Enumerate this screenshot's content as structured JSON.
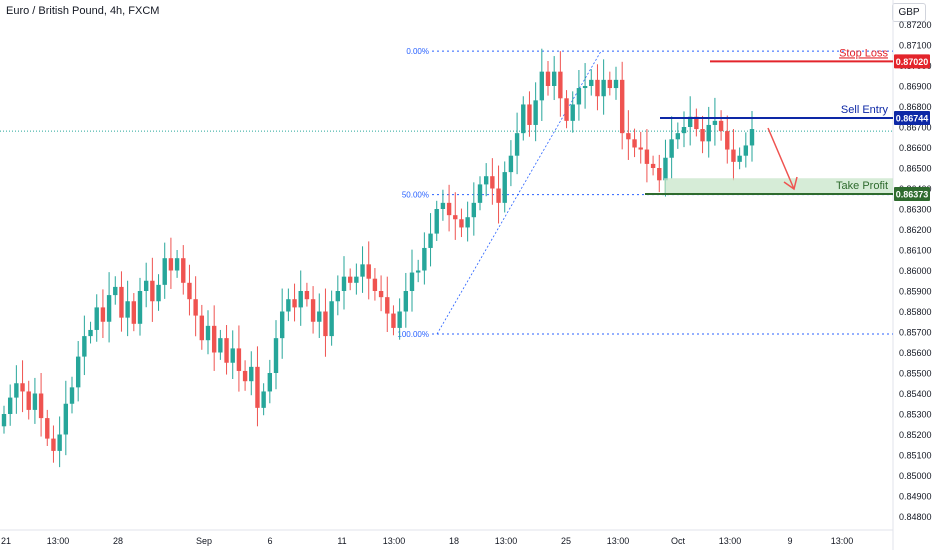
{
  "header": {
    "title": "Euro / British Pound, 4h, FXCM",
    "currency": "GBP"
  },
  "colors": {
    "up": "#26a69a",
    "down": "#ef5350",
    "stop_loss": "#e3242b",
    "sell_entry": "#0d28a6",
    "take_profit": "#2e6b2e",
    "take_profit_zone": "#c8e6c9",
    "fib": "#2962ff",
    "axis_text": "#131722"
  },
  "chart_data": {
    "type": "candlestick",
    "title": "Euro / British Pound, 4h, FXCM",
    "ylim": [
      0.8475,
      0.8725
    ],
    "y_ticks": [
      "0.87200",
      "0.87100",
      "0.87000",
      "0.86900",
      "0.86800",
      "0.86700",
      "0.86600",
      "0.86500",
      "0.86400",
      "0.86300",
      "0.86200",
      "0.86100",
      "0.86000",
      "0.85900",
      "0.85800",
      "0.85700",
      "0.85600",
      "0.85500",
      "0.85400",
      "0.85300",
      "0.85200",
      "0.85100",
      "0.85000",
      "0.84900",
      "0.84800"
    ],
    "x_ticks": [
      "21",
      "13:00",
      "28",
      "Sep",
      "6",
      "11",
      "13:00",
      "18",
      "13:00",
      "25",
      "13:00",
      "Oct",
      "13:00",
      "9",
      "13:00"
    ],
    "candles": {
      "close": [
        0.853,
        0.8538,
        0.8545,
        0.8541,
        0.8532,
        0.854,
        0.8528,
        0.8518,
        0.8512,
        0.852,
        0.8535,
        0.8543,
        0.8558,
        0.8568,
        0.8571,
        0.8582,
        0.8575,
        0.8588,
        0.8592,
        0.8577,
        0.8585,
        0.8574,
        0.859,
        0.8595,
        0.8585,
        0.8593,
        0.8606,
        0.86,
        0.8606,
        0.8594,
        0.8586,
        0.8578,
        0.8566,
        0.8573,
        0.856,
        0.8567,
        0.8555,
        0.8562,
        0.8551,
        0.8546,
        0.8553,
        0.8533,
        0.8541,
        0.855,
        0.8567,
        0.858,
        0.8586,
        0.8582,
        0.859,
        0.8586,
        0.8575,
        0.858,
        0.8568,
        0.8585,
        0.859,
        0.8597,
        0.8594,
        0.8597,
        0.8603,
        0.8596,
        0.859,
        0.8587,
        0.8579,
        0.8572,
        0.858,
        0.859,
        0.8599,
        0.86,
        0.8611,
        0.8618,
        0.863,
        0.8633,
        0.8627,
        0.8625,
        0.8621,
        0.8626,
        0.8633,
        0.8642,
        0.8646,
        0.864,
        0.8633,
        0.8648,
        0.8656,
        0.8667,
        0.8681,
        0.8671,
        0.8683,
        0.8697,
        0.869,
        0.8697,
        0.8684,
        0.8673,
        0.8681,
        0.8689,
        0.869,
        0.8693,
        0.8685,
        0.8693,
        0.8689,
        0.8693,
        0.8667,
        0.8664,
        0.866,
        0.8659,
        0.8652,
        0.865,
        0.8644,
        0.8655,
        0.8664,
        0.8667,
        0.867,
        0.8675,
        0.8669,
        0.8663,
        0.8671,
        0.8673,
        0.8668,
        0.8659,
        0.8653,
        0.8656,
        0.8661,
        0.8669
      ]
    },
    "annotations": [
      {
        "label": "Stop Loss",
        "price_label": "0.87020",
        "value": 0.8702
      },
      {
        "label": "Sell Entry",
        "price_label": "0.86744",
        "value": 0.86744
      },
      {
        "label": "Take Profit",
        "price_label": "0.86373",
        "value": 0.86373
      }
    ],
    "fibonacci": [
      {
        "label": "0.00%",
        "value": 0.8707
      },
      {
        "label": "50.00%",
        "value": 0.8637
      },
      {
        "label": "100.00%",
        "value": 0.8569
      }
    ],
    "current_price_line": 0.8668
  }
}
